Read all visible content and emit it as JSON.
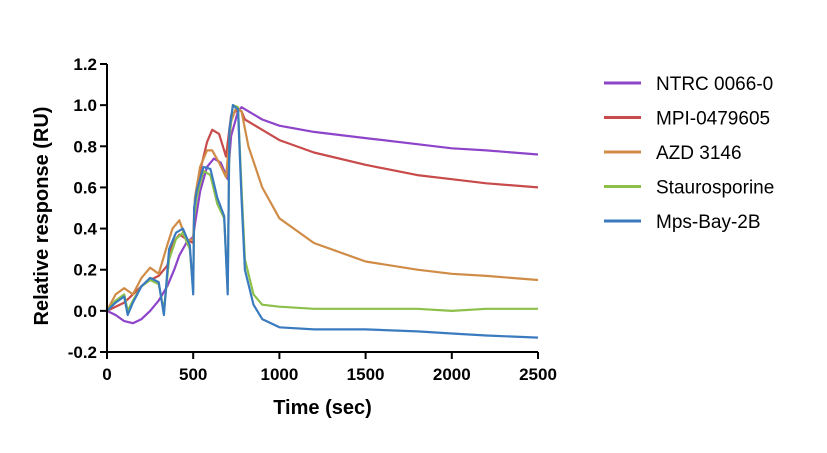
{
  "chart_data": {
    "type": "line",
    "title": "",
    "xlabel": "Time (sec)",
    "ylabel": "Relative response (RU)",
    "xlim": [
      0,
      2500
    ],
    "ylim": [
      -0.2,
      1.2
    ],
    "xticks": [
      "0",
      "500",
      "1000",
      "1500",
      "2000",
      "2500"
    ],
    "yticks": [
      "-0.2",
      "0.0",
      "0.2",
      "0.4",
      "0.6",
      "0.8",
      "1.0",
      "1.2"
    ],
    "grid": false,
    "legend_position": "right",
    "series": [
      {
        "name": "NTRC 0066-0",
        "color": "#8e44c9",
        "x": [
          0,
          50,
          100,
          150,
          200,
          250,
          300,
          350,
          390,
          420,
          460,
          500,
          510,
          540,
          580,
          620,
          660,
          700,
          720,
          760,
          780,
          900,
          1000,
          1200,
          1500,
          1800,
          2000,
          2200,
          2500
        ],
        "y": [
          0.0,
          -0.02,
          -0.05,
          -0.06,
          -0.04,
          0.0,
          0.05,
          0.12,
          0.2,
          0.27,
          0.33,
          0.36,
          0.42,
          0.58,
          0.7,
          0.74,
          0.72,
          0.64,
          0.85,
          0.97,
          0.99,
          0.93,
          0.9,
          0.87,
          0.84,
          0.81,
          0.79,
          0.78,
          0.76
        ]
      },
      {
        "name": "MPI-0479605",
        "color": "#c84a4a",
        "x": [
          0,
          50,
          100,
          150,
          200,
          250,
          300,
          350,
          380,
          420,
          460,
          500,
          510,
          540,
          580,
          610,
          650,
          690,
          720,
          760,
          780,
          800,
          900,
          1000,
          1200,
          1500,
          1800,
          2000,
          2200,
          2500
        ],
        "y": [
          0.0,
          0.02,
          0.04,
          0.08,
          0.12,
          0.15,
          0.17,
          0.22,
          0.33,
          0.37,
          0.35,
          0.33,
          0.5,
          0.68,
          0.82,
          0.88,
          0.86,
          0.75,
          0.95,
          0.98,
          0.97,
          0.93,
          0.88,
          0.83,
          0.77,
          0.71,
          0.66,
          0.64,
          0.62,
          0.6
        ]
      },
      {
        "name": "AZD 3146",
        "color": "#d08c47",
        "x": [
          0,
          50,
          100,
          150,
          200,
          250,
          300,
          350,
          380,
          420,
          460,
          500,
          510,
          540,
          580,
          610,
          650,
          690,
          720,
          750,
          780,
          820,
          900,
          1000,
          1200,
          1500,
          1800,
          2000,
          2200,
          2500
        ],
        "y": [
          0.0,
          0.08,
          0.11,
          0.08,
          0.16,
          0.21,
          0.18,
          0.32,
          0.4,
          0.44,
          0.34,
          0.35,
          0.55,
          0.7,
          0.78,
          0.78,
          0.72,
          0.65,
          0.92,
          0.99,
          0.97,
          0.8,
          0.6,
          0.45,
          0.33,
          0.24,
          0.2,
          0.18,
          0.17,
          0.15
        ]
      },
      {
        "name": "Staurosporine",
        "color": "#8cc04b",
        "x": [
          0,
          50,
          100,
          120,
          150,
          200,
          250,
          300,
          330,
          360,
          400,
          440,
          480,
          500,
          505,
          520,
          560,
          600,
          640,
          680,
          700,
          710,
          730,
          760,
          780,
          800,
          850,
          900,
          1000,
          1200,
          1500,
          1800,
          2000,
          2200,
          2500
        ],
        "y": [
          0.0,
          0.05,
          0.08,
          0.0,
          0.05,
          0.12,
          0.15,
          0.13,
          0.0,
          0.25,
          0.35,
          0.38,
          0.3,
          0.1,
          0.45,
          0.55,
          0.68,
          0.66,
          0.52,
          0.45,
          0.1,
          0.85,
          1.0,
          0.99,
          0.6,
          0.25,
          0.08,
          0.03,
          0.02,
          0.01,
          0.01,
          0.01,
          0.0,
          0.01,
          0.01
        ]
      },
      {
        "name": "Mps-Bay-2B",
        "color": "#3a7bbf",
        "x": [
          0,
          50,
          100,
          120,
          150,
          200,
          250,
          300,
          330,
          360,
          400,
          440,
          480,
          500,
          505,
          520,
          560,
          600,
          640,
          680,
          700,
          710,
          730,
          760,
          780,
          800,
          850,
          900,
          1000,
          1200,
          1500,
          1800,
          2000,
          2200,
          2500
        ],
        "y": [
          0.0,
          0.04,
          0.07,
          -0.02,
          0.04,
          0.12,
          0.16,
          0.14,
          -0.02,
          0.3,
          0.38,
          0.4,
          0.32,
          0.08,
          0.5,
          0.58,
          0.7,
          0.69,
          0.55,
          0.46,
          0.08,
          0.88,
          1.0,
          0.98,
          0.55,
          0.2,
          0.03,
          -0.04,
          -0.08,
          -0.09,
          -0.09,
          -0.1,
          -0.11,
          -0.12,
          -0.13
        ]
      }
    ]
  }
}
